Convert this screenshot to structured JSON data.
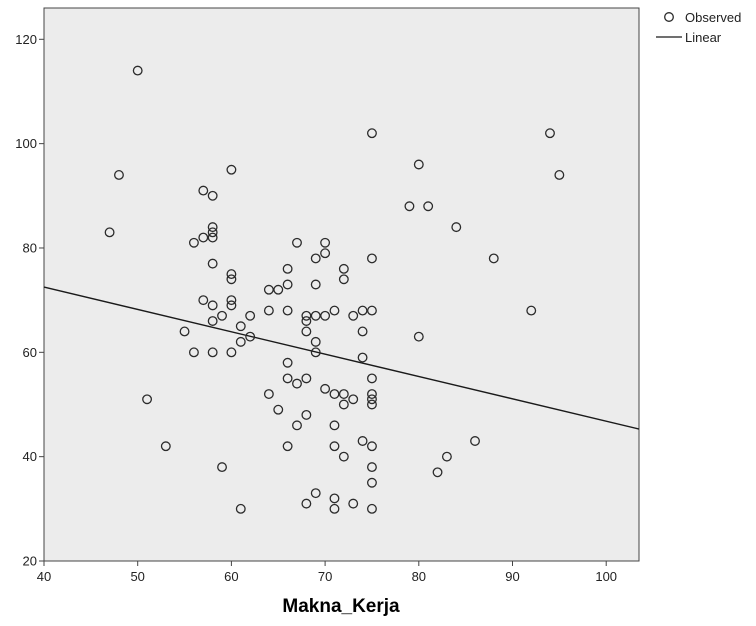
{
  "chart_data": {
    "type": "scatter",
    "title": "",
    "xlabel": "Makna_Kerja",
    "ylabel": "",
    "xlim": [
      40,
      103.5
    ],
    "ylim": [
      20,
      126
    ],
    "x_ticks": [
      40,
      50,
      60,
      70,
      80,
      90,
      100
    ],
    "y_ticks": [
      20,
      40,
      60,
      80,
      100,
      120
    ],
    "grid": false,
    "legend_position": "top-right",
    "legend": {
      "observed_label": "Observed",
      "linear_label": "Linear"
    },
    "colors": {
      "plot_background": "#ececec",
      "marker": "#2b2b2b",
      "line": "#1a1a1a"
    },
    "fit_line": {
      "x": [
        40,
        103.5
      ],
      "y": [
        72.5,
        45.3
      ]
    },
    "points": [
      [
        50,
        114
      ],
      [
        47,
        83
      ],
      [
        48,
        94
      ],
      [
        51,
        51
      ],
      [
        53,
        42
      ],
      [
        55,
        64
      ],
      [
        56,
        60
      ],
      [
        56,
        81
      ],
      [
        57,
        82
      ],
      [
        57,
        91
      ],
      [
        57,
        70
      ],
      [
        58,
        90
      ],
      [
        58,
        84
      ],
      [
        58,
        83
      ],
      [
        58,
        82
      ],
      [
        58,
        77
      ],
      [
        58,
        69
      ],
      [
        58,
        66
      ],
      [
        58,
        60
      ],
      [
        59,
        67
      ],
      [
        59,
        38
      ],
      [
        60,
        95
      ],
      [
        60,
        75
      ],
      [
        60,
        74
      ],
      [
        60,
        70
      ],
      [
        60,
        69
      ],
      [
        60,
        60
      ],
      [
        61,
        65
      ],
      [
        61,
        62
      ],
      [
        61,
        30
      ],
      [
        62,
        67
      ],
      [
        62,
        63
      ],
      [
        64,
        72
      ],
      [
        64,
        68
      ],
      [
        64,
        52
      ],
      [
        65,
        72
      ],
      [
        65,
        49
      ],
      [
        66,
        76
      ],
      [
        66,
        73
      ],
      [
        66,
        68
      ],
      [
        66,
        58
      ],
      [
        66,
        55
      ],
      [
        66,
        42
      ],
      [
        67,
        81
      ],
      [
        67,
        54
      ],
      [
        67,
        46
      ],
      [
        68,
        67
      ],
      [
        68,
        66
      ],
      [
        68,
        64
      ],
      [
        68,
        55
      ],
      [
        68,
        48
      ],
      [
        68,
        31
      ],
      [
        69,
        78
      ],
      [
        69,
        73
      ],
      [
        69,
        67
      ],
      [
        69,
        62
      ],
      [
        69,
        60
      ],
      [
        69,
        33
      ],
      [
        70,
        81
      ],
      [
        70,
        79
      ],
      [
        70,
        67
      ],
      [
        70,
        53
      ],
      [
        71,
        68
      ],
      [
        71,
        52
      ],
      [
        71,
        46
      ],
      [
        71,
        42
      ],
      [
        71,
        32
      ],
      [
        71,
        30
      ],
      [
        72,
        76
      ],
      [
        72,
        74
      ],
      [
        72,
        52
      ],
      [
        72,
        50
      ],
      [
        72,
        40
      ],
      [
        73,
        67
      ],
      [
        73,
        51
      ],
      [
        73,
        31
      ],
      [
        74,
        68
      ],
      [
        74,
        64
      ],
      [
        74,
        59
      ],
      [
        74,
        43
      ],
      [
        75,
        102
      ],
      [
        75,
        78
      ],
      [
        75,
        68
      ],
      [
        75,
        55
      ],
      [
        75,
        52
      ],
      [
        75,
        51
      ],
      [
        75,
        50
      ],
      [
        75,
        42
      ],
      [
        75,
        38
      ],
      [
        75,
        35
      ],
      [
        75,
        30
      ],
      [
        79,
        88
      ],
      [
        80,
        96
      ],
      [
        80,
        63
      ],
      [
        81,
        88
      ],
      [
        82,
        37
      ],
      [
        83,
        40
      ],
      [
        84,
        84
      ],
      [
        86,
        43
      ],
      [
        88,
        78
      ],
      [
        92,
        68
      ],
      [
        94,
        102
      ],
      [
        95,
        94
      ]
    ]
  }
}
